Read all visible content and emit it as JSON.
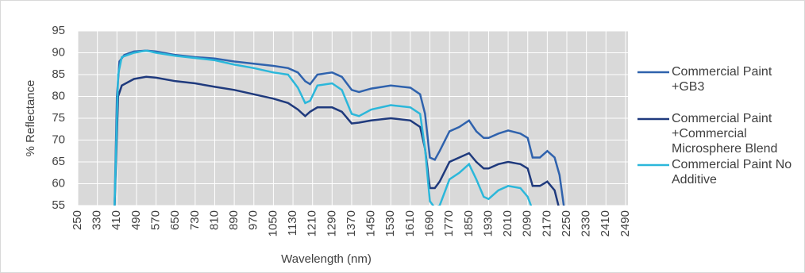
{
  "chart_data": {
    "type": "line",
    "xlabel": "Wavelength (nm)",
    "ylabel": "% Reflectance",
    "xlim": [
      250,
      2500
    ],
    "ylim": [
      55,
      95
    ],
    "xticks": [
      250,
      330,
      410,
      490,
      570,
      650,
      730,
      810,
      890,
      970,
      1050,
      1130,
      1210,
      1290,
      1370,
      1450,
      1530,
      1610,
      1690,
      1770,
      1850,
      1930,
      2010,
      2090,
      2170,
      2250,
      2330,
      2410,
      2490
    ],
    "yticks": [
      55,
      60,
      65,
      70,
      75,
      80,
      85,
      90,
      95
    ],
    "grid": true,
    "legend": "right",
    "series": [
      {
        "name": "Commercial Paint +GB3",
        "color": "#2f62ad",
        "x": [
          400,
          410,
          420,
          440,
          480,
          530,
          570,
          650,
          730,
          810,
          890,
          970,
          1050,
          1110,
          1150,
          1180,
          1200,
          1230,
          1290,
          1330,
          1370,
          1400,
          1450,
          1530,
          1610,
          1650,
          1670,
          1690,
          1710,
          1730,
          1770,
          1810,
          1850,
          1880,
          1910,
          1930,
          1970,
          2010,
          2060,
          2090,
          2110,
          2140,
          2170,
          2200,
          2220,
          2240
        ],
        "values": [
          54,
          80,
          88,
          89.5,
          90.3,
          90.5,
          90.3,
          89.5,
          89,
          88.7,
          88,
          87.5,
          87,
          86.5,
          85.5,
          83.5,
          82.8,
          85,
          85.5,
          84.5,
          81.5,
          81,
          81.8,
          82.5,
          82,
          80.5,
          76,
          66,
          65.5,
          67.5,
          72,
          73,
          74.5,
          72,
          70.5,
          70.5,
          71.5,
          72.2,
          71.5,
          70.5,
          66,
          66,
          67.5,
          66,
          62,
          54
        ]
      },
      {
        "name": "Commercial Paint +Commercial Microsphere Blend",
        "color": "#1f3a7d",
        "x": [
          400,
          415,
          430,
          480,
          530,
          570,
          650,
          730,
          810,
          890,
          970,
          1050,
          1110,
          1150,
          1180,
          1200,
          1230,
          1290,
          1330,
          1370,
          1400,
          1450,
          1530,
          1610,
          1650,
          1670,
          1690,
          1710,
          1730,
          1770,
          1810,
          1850,
          1880,
          1910,
          1930,
          1970,
          2010,
          2060,
          2090,
          2110,
          2140,
          2170,
          2200,
          2220
        ],
        "values": [
          54,
          80,
          82.5,
          84,
          84.5,
          84.3,
          83.5,
          83,
          82.2,
          81.5,
          80.5,
          79.5,
          78.5,
          77,
          75.5,
          76.5,
          77.5,
          77.5,
          76.5,
          73.8,
          74,
          74.5,
          75,
          74.5,
          73,
          68,
          59,
          59,
          60.5,
          65,
          66,
          67,
          65,
          63.5,
          63.5,
          64.5,
          65,
          64.5,
          63.5,
          59.5,
          59.5,
          60.5,
          58.5,
          54
        ]
      },
      {
        "name": "Commercial Paint No Additive",
        "color": "#2bb7da",
        "x": [
          400,
          415,
          430,
          480,
          530,
          570,
          650,
          730,
          810,
          890,
          970,
          1050,
          1110,
          1150,
          1180,
          1200,
          1230,
          1290,
          1330,
          1370,
          1400,
          1450,
          1530,
          1610,
          1650,
          1670,
          1690,
          1710,
          1730,
          1770,
          1810,
          1850,
          1880,
          1910,
          1930,
          1970,
          2010,
          2060,
          2090,
          2110
        ],
        "values": [
          54,
          85,
          89,
          90,
          90.5,
          90,
          89.3,
          88.8,
          88.3,
          87.3,
          86.5,
          85.5,
          85,
          82,
          78.5,
          79,
          82.5,
          83,
          81.5,
          76,
          75.5,
          77,
          78,
          77.5,
          76,
          68,
          56,
          54.5,
          55,
          61,
          62.5,
          64.5,
          61,
          57,
          56.5,
          58.5,
          59.5,
          59,
          57,
          54
        ]
      }
    ]
  }
}
